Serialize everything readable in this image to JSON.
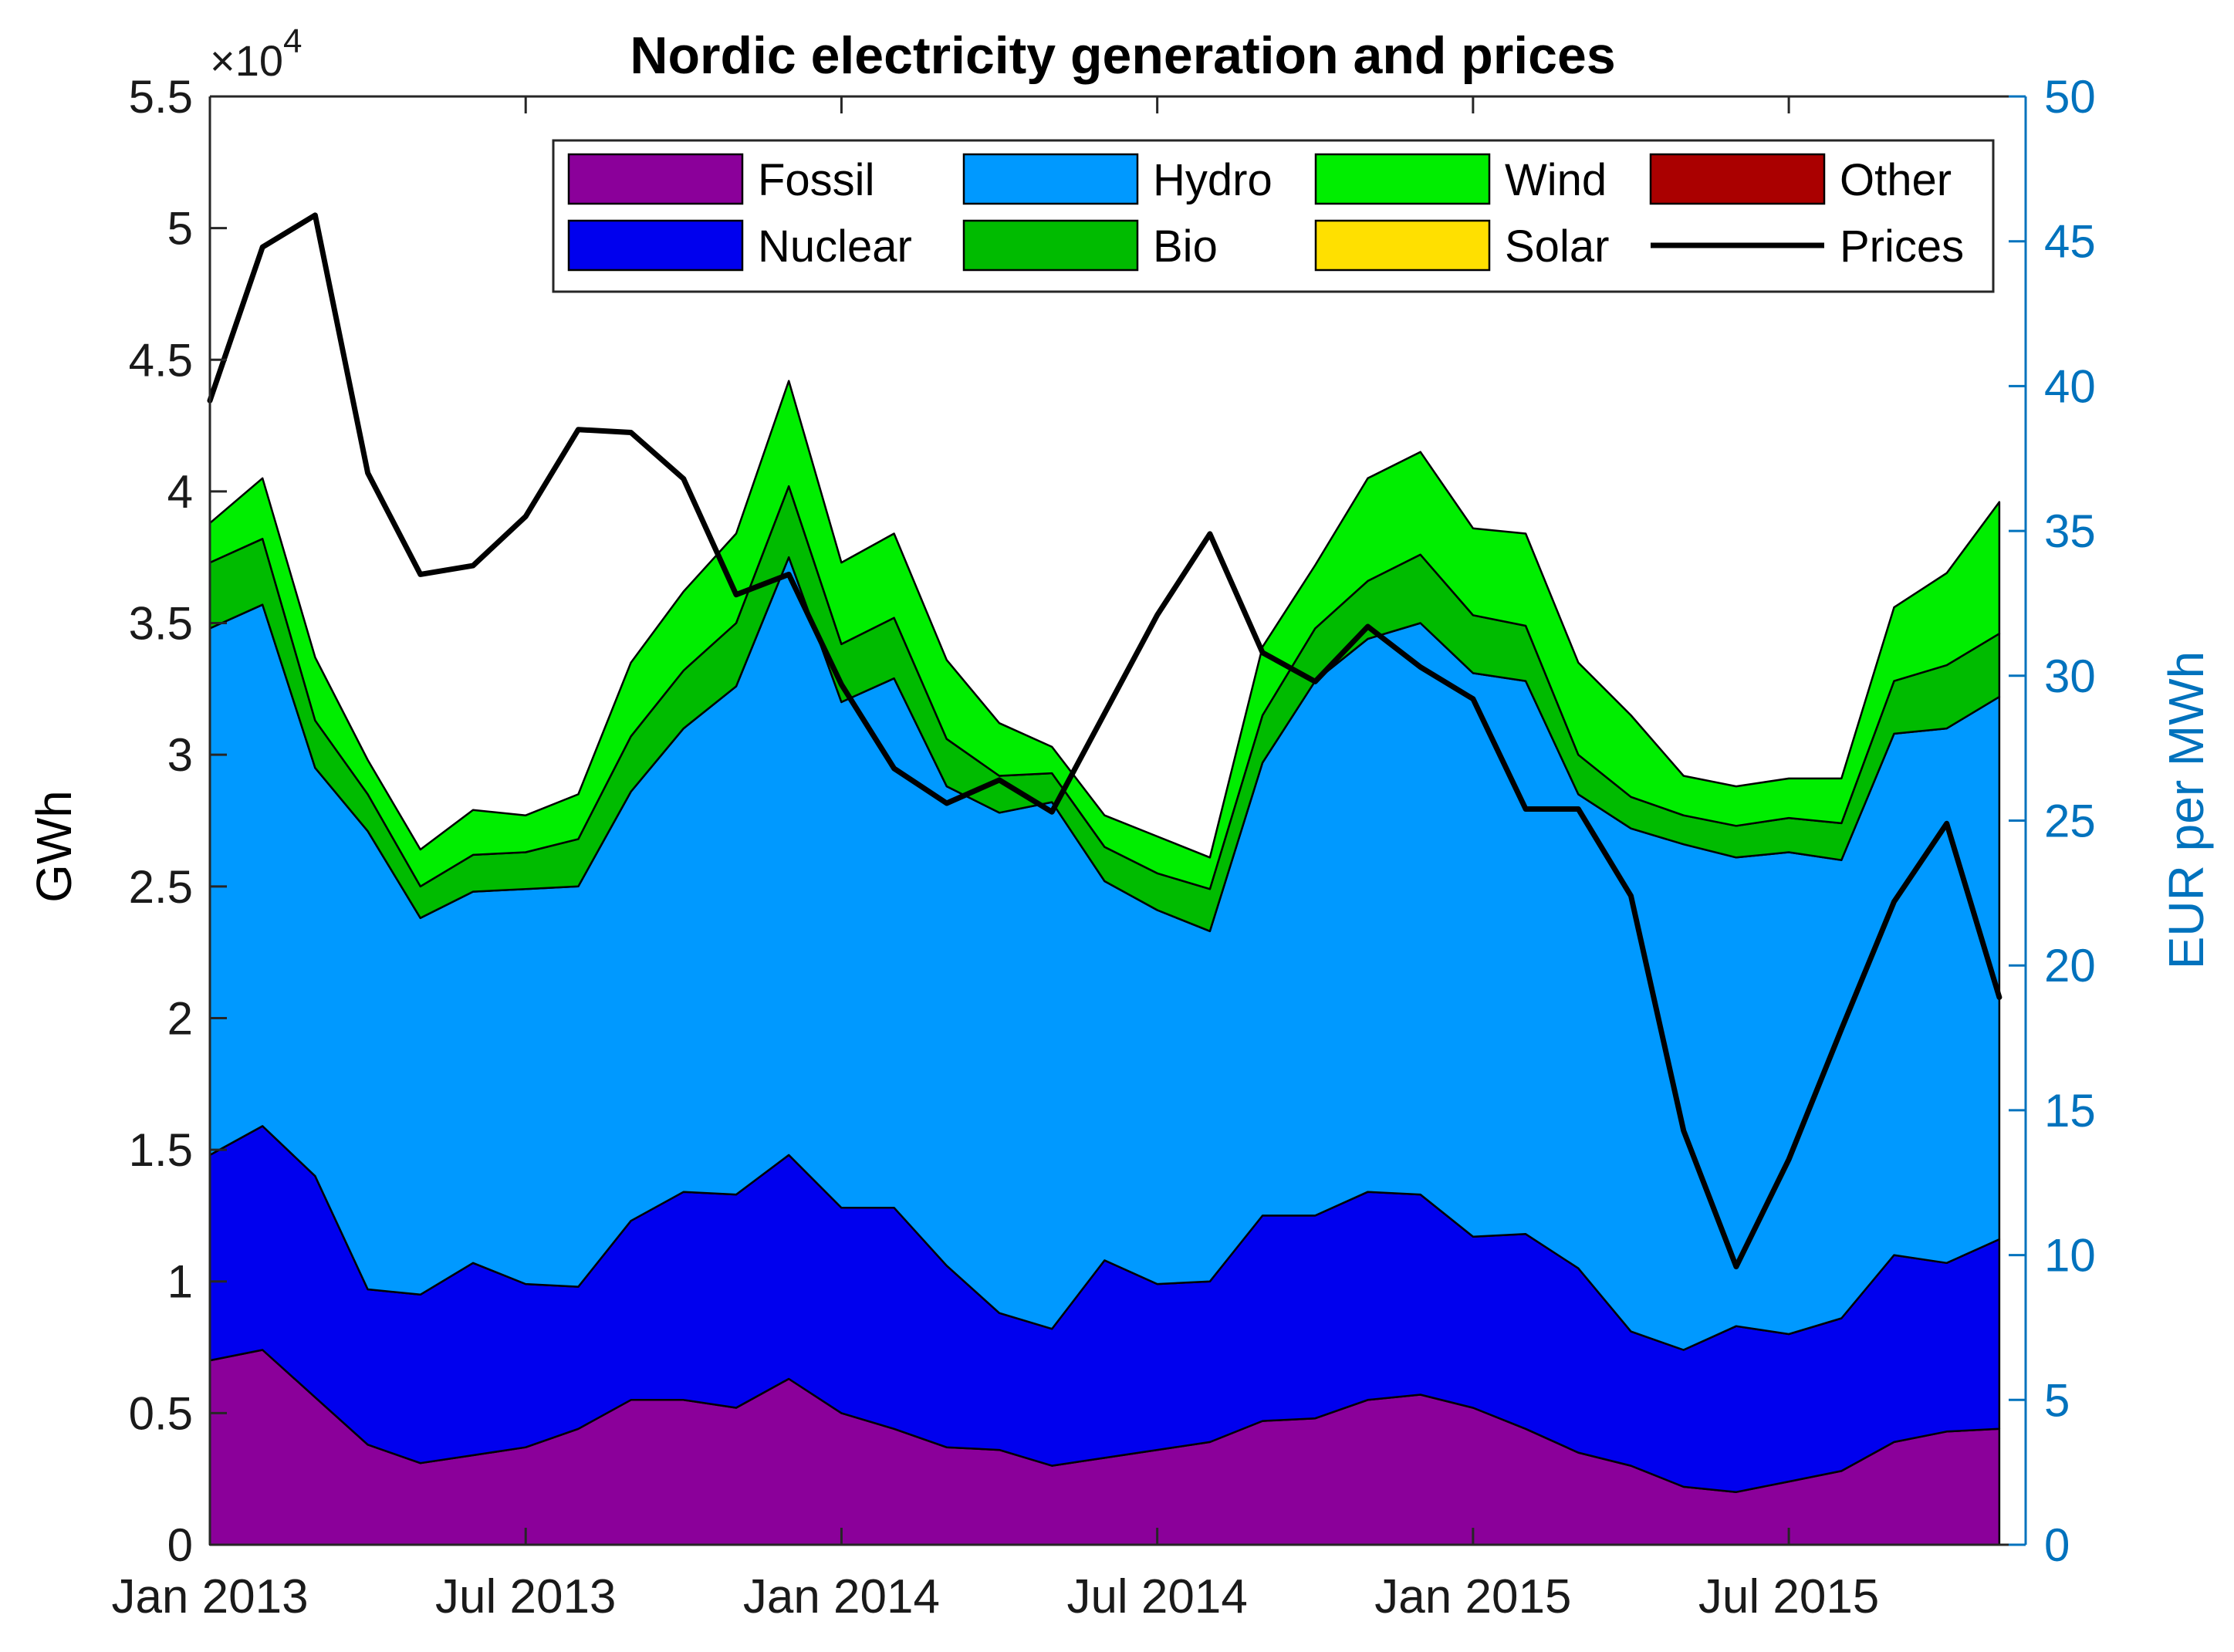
{
  "chart_data": {
    "type": "area",
    "title": "Nordic electricity generation and prices",
    "xlabel": "",
    "ylabel_left": "GWh",
    "ylabel_right": "EUR per MWh",
    "y_multiplier_base": "×10",
    "y_multiplier_exp": "4",
    "ylim_left": [
      0,
      5.5
    ],
    "ylim_right": [
      0,
      50
    ],
    "xlim": [
      0,
      34.5
    ],
    "x_ticks": [
      {
        "pos": 0,
        "label": "Jan 2013"
      },
      {
        "pos": 6,
        "label": "Jul 2013"
      },
      {
        "pos": 12,
        "label": "Jan 2014"
      },
      {
        "pos": 18,
        "label": "Jul 2014"
      },
      {
        "pos": 24,
        "label": "Jan 2015"
      },
      {
        "pos": 30,
        "label": "Jul 2015"
      }
    ],
    "y_ticks_left": [
      {
        "value": 0,
        "label": "0"
      },
      {
        "value": 0.5,
        "label": "0.5"
      },
      {
        "value": 1,
        "label": "1"
      },
      {
        "value": 1.5,
        "label": "1.5"
      },
      {
        "value": 2,
        "label": "2"
      },
      {
        "value": 2.5,
        "label": "2.5"
      },
      {
        "value": 3,
        "label": "3"
      },
      {
        "value": 3.5,
        "label": "3.5"
      },
      {
        "value": 4,
        "label": "4"
      },
      {
        "value": 4.5,
        "label": "4.5"
      },
      {
        "value": 5,
        "label": "5"
      },
      {
        "value": 5.5,
        "label": "5.5"
      }
    ],
    "y_ticks_right": [
      {
        "value": 0,
        "label": "0"
      },
      {
        "value": 5,
        "label": "5"
      },
      {
        "value": 10,
        "label": "10"
      },
      {
        "value": 15,
        "label": "15"
      },
      {
        "value": 20,
        "label": "20"
      },
      {
        "value": 25,
        "label": "25"
      },
      {
        "value": 30,
        "label": "30"
      },
      {
        "value": 35,
        "label": "35"
      },
      {
        "value": 40,
        "label": "40"
      },
      {
        "value": 45,
        "label": "45"
      },
      {
        "value": 50,
        "label": "50"
      }
    ],
    "x": [
      0,
      1,
      2,
      3,
      4,
      5,
      6,
      7,
      8,
      9,
      10,
      11,
      12,
      13,
      14,
      15,
      16,
      17,
      18,
      19,
      20,
      21,
      22,
      23,
      24,
      25,
      26,
      27,
      28,
      29,
      30,
      31,
      32,
      33,
      34
    ],
    "series": [
      {
        "name": "Fossil",
        "color": "#8B009A",
        "values": [
          0.7,
          0.74,
          0.56,
          0.38,
          0.31,
          0.34,
          0.37,
          0.44,
          0.55,
          0.55,
          0.52,
          0.63,
          0.5,
          0.44,
          0.37,
          0.36,
          0.3,
          0.33,
          0.36,
          0.39,
          0.47,
          0.48,
          0.55,
          0.57,
          0.52,
          0.44,
          0.35,
          0.3,
          0.22,
          0.2,
          0.24,
          0.28,
          0.39,
          0.43,
          0.44
        ]
      },
      {
        "name": "Nuclear",
        "color": "#0000EE",
        "values": [
          0.78,
          0.85,
          0.84,
          0.59,
          0.64,
          0.73,
          0.62,
          0.54,
          0.68,
          0.79,
          0.81,
          0.85,
          0.78,
          0.84,
          0.69,
          0.52,
          0.52,
          0.75,
          0.63,
          0.61,
          0.78,
          0.77,
          0.79,
          0.76,
          0.65,
          0.74,
          0.7,
          0.51,
          0.52,
          0.63,
          0.56,
          0.58,
          0.71,
          0.64,
          0.72
        ]
      },
      {
        "name": "Hydro",
        "color": "#0099FF",
        "values": [
          2.0,
          1.98,
          1.55,
          1.74,
          1.43,
          1.41,
          1.5,
          1.52,
          1.63,
          1.76,
          1.93,
          2.27,
          1.92,
          2.01,
          1.82,
          1.9,
          2.0,
          1.44,
          1.42,
          1.33,
          1.72,
          2.03,
          2.1,
          2.17,
          2.14,
          2.1,
          1.8,
          1.91,
          1.92,
          1.78,
          1.83,
          1.74,
          1.98,
          2.03,
          2.06
        ]
      },
      {
        "name": "Bio",
        "color": "#00BB00",
        "values": [
          0.25,
          0.25,
          0.18,
          0.14,
          0.12,
          0.14,
          0.14,
          0.18,
          0.21,
          0.22,
          0.24,
          0.27,
          0.22,
          0.23,
          0.18,
          0.14,
          0.11,
          0.13,
          0.14,
          0.16,
          0.18,
          0.2,
          0.22,
          0.26,
          0.22,
          0.21,
          0.15,
          0.12,
          0.11,
          0.12,
          0.13,
          0.14,
          0.2,
          0.24,
          0.24
        ]
      },
      {
        "name": "Wind",
        "color": "#00EE00",
        "values": [
          0.15,
          0.23,
          0.24,
          0.13,
          0.14,
          0.17,
          0.14,
          0.17,
          0.28,
          0.3,
          0.34,
          0.4,
          0.31,
          0.32,
          0.3,
          0.2,
          0.1,
          0.12,
          0.14,
          0.12,
          0.26,
          0.24,
          0.39,
          0.39,
          0.33,
          0.35,
          0.35,
          0.31,
          0.15,
          0.15,
          0.15,
          0.17,
          0.28,
          0.35,
          0.5
        ]
      },
      {
        "name": "Other",
        "color": "#AA0000",
        "values": [
          0,
          0,
          0,
          0,
          0,
          0,
          0,
          0,
          0,
          0,
          0,
          0,
          0,
          0,
          0,
          0,
          0,
          0,
          0,
          0,
          0,
          0,
          0,
          0,
          0,
          0,
          0,
          0,
          0,
          0,
          0,
          0,
          0,
          0,
          0
        ]
      },
      {
        "name": "Solar",
        "color": "#FFE000",
        "values": [
          0,
          0,
          0,
          0,
          0,
          0,
          0,
          0,
          0,
          0,
          0,
          0,
          0,
          0,
          0,
          0,
          0,
          0,
          0,
          0,
          0,
          0,
          0,
          0,
          0,
          0,
          0,
          0,
          0,
          0,
          0,
          0,
          0,
          0,
          0
        ]
      }
    ],
    "prices": {
      "name": "Prices",
      "color": "#000000",
      "axis": "right",
      "values": [
        39.5,
        44.8,
        45.9,
        37.0,
        33.5,
        33.8,
        35.5,
        38.5,
        38.4,
        36.8,
        32.8,
        33.5,
        29.7,
        26.8,
        25.6,
        26.4,
        25.3,
        28.7,
        32.1,
        34.9,
        30.8,
        29.8,
        31.7,
        30.3,
        29.2,
        25.4,
        25.4,
        22.4,
        14.3,
        9.6,
        13.3,
        17.8,
        22.2,
        24.9,
        18.9
      ]
    },
    "legend": {
      "position": "top-right",
      "entries": [
        "Fossil",
        "Hydro",
        "Wind",
        "Other",
        "Nuclear",
        "Bio",
        "Solar",
        "Prices"
      ]
    },
    "grid": false
  },
  "colors": {
    "right_axis": "#0072BD",
    "axis": "#262626"
  }
}
